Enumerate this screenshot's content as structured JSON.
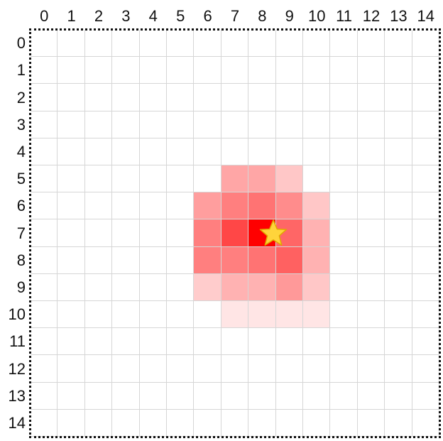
{
  "grid": {
    "columns": [
      "0",
      "1",
      "2",
      "3",
      "4",
      "5",
      "6",
      "7",
      "8",
      "9",
      "10",
      "11",
      "12",
      "13",
      "14"
    ],
    "rows": [
      "0",
      "1",
      "2",
      "3",
      "4",
      "5",
      "6",
      "7",
      "8",
      "9",
      "10",
      "11",
      "12",
      "13",
      "14"
    ],
    "line_color": "#d6d6d6",
    "border_color": "#111111",
    "background_color": "#ffffff"
  },
  "heat_color": "#ff0000",
  "heatmap_cells": [
    {
      "row": 5,
      "col": 7,
      "intensity": 0.35
    },
    {
      "row": 5,
      "col": 8,
      "intensity": 0.35
    },
    {
      "row": 5,
      "col": 9,
      "intensity": 0.22
    },
    {
      "row": 6,
      "col": 6,
      "intensity": 0.38
    },
    {
      "row": 6,
      "col": 7,
      "intensity": 0.5
    },
    {
      "row": 6,
      "col": 8,
      "intensity": 0.55
    },
    {
      "row": 6,
      "col": 9,
      "intensity": 0.45
    },
    {
      "row": 6,
      "col": 10,
      "intensity": 0.22
    },
    {
      "row": 7,
      "col": 6,
      "intensity": 0.5
    },
    {
      "row": 7,
      "col": 7,
      "intensity": 0.72
    },
    {
      "row": 7,
      "col": 8,
      "intensity": 1.0
    },
    {
      "row": 7,
      "col": 9,
      "intensity": 0.6
    },
    {
      "row": 7,
      "col": 10,
      "intensity": 0.3
    },
    {
      "row": 8,
      "col": 6,
      "intensity": 0.5
    },
    {
      "row": 8,
      "col": 7,
      "intensity": 0.5
    },
    {
      "row": 8,
      "col": 8,
      "intensity": 0.55
    },
    {
      "row": 8,
      "col": 9,
      "intensity": 0.62
    },
    {
      "row": 8,
      "col": 10,
      "intensity": 0.3
    },
    {
      "row": 9,
      "col": 6,
      "intensity": 0.2
    },
    {
      "row": 9,
      "col": 7,
      "intensity": 0.3
    },
    {
      "row": 9,
      "col": 8,
      "intensity": 0.3
    },
    {
      "row": 9,
      "col": 9,
      "intensity": 0.4
    },
    {
      "row": 9,
      "col": 10,
      "intensity": 0.22
    },
    {
      "row": 10,
      "col": 7,
      "intensity": 0.1
    },
    {
      "row": 10,
      "col": 8,
      "intensity": 0.1
    },
    {
      "row": 10,
      "col": 9,
      "intensity": 0.1
    },
    {
      "row": 10,
      "col": 10,
      "intensity": 0.1
    }
  ],
  "star": {
    "icon": "star-icon",
    "row": 7,
    "col": 8,
    "fill_color": "#ffd43b",
    "stroke_color": "#e0a800"
  }
}
